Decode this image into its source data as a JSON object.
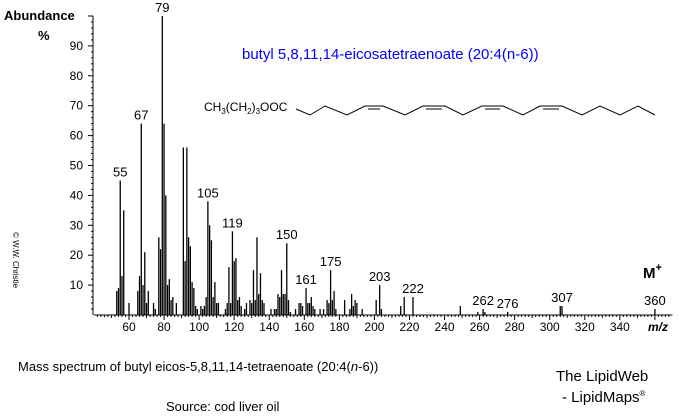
{
  "chart_data": {
    "type": "bar",
    "title": "butyl 5,8,11,14-eicosatetraenoate  (20:4(n-6))",
    "ylabel": "Abundance",
    "ylabel_unit": "%",
    "xlabel": "m/z",
    "xlim": [
      40,
      370
    ],
    "ylim": [
      0,
      100
    ],
    "x_ticks": [
      60,
      80,
      100,
      120,
      140,
      160,
      180,
      200,
      220,
      240,
      260,
      280,
      300,
      320,
      340
    ],
    "y_ticks": [
      10,
      20,
      30,
      40,
      50,
      60,
      70,
      80,
      90
    ],
    "bar_color": "#000000",
    "title_color": "#0000ff",
    "molecular_ion_label": "M",
    "molecular_ion_sup": "+",
    "peak_labels": [
      55,
      67,
      79,
      105,
      119,
      150,
      161,
      175,
      203,
      222,
      262,
      276,
      307,
      360
    ],
    "peaks": [
      [
        53,
        8
      ],
      [
        54,
        9
      ],
      [
        55,
        45
      ],
      [
        56,
        13
      ],
      [
        57,
        35
      ],
      [
        60,
        4
      ],
      [
        65,
        8
      ],
      [
        66,
        13
      ],
      [
        67,
        64
      ],
      [
        68,
        10
      ],
      [
        69,
        21
      ],
      [
        70,
        4
      ],
      [
        71,
        8
      ],
      [
        74,
        4
      ],
      [
        75,
        2
      ],
      [
        77,
        26
      ],
      [
        78,
        22
      ],
      [
        79,
        100
      ],
      [
        80,
        64
      ],
      [
        81,
        40
      ],
      [
        82,
        10
      ],
      [
        83,
        12
      ],
      [
        84,
        5
      ],
      [
        85,
        6
      ],
      [
        87,
        4
      ],
      [
        91,
        56
      ],
      [
        92,
        18
      ],
      [
        93,
        56
      ],
      [
        94,
        26
      ],
      [
        95,
        23
      ],
      [
        96,
        11
      ],
      [
        97,
        9
      ],
      [
        98,
        3
      ],
      [
        99,
        2
      ],
      [
        101,
        3
      ],
      [
        102,
        2
      ],
      [
        103,
        3
      ],
      [
        104,
        6
      ],
      [
        105,
        38
      ],
      [
        106,
        30
      ],
      [
        107,
        25
      ],
      [
        108,
        6
      ],
      [
        109,
        11
      ],
      [
        110,
        4
      ],
      [
        111,
        4
      ],
      [
        115,
        2
      ],
      [
        116,
        4
      ],
      [
        117,
        16
      ],
      [
        118,
        4
      ],
      [
        119,
        28
      ],
      [
        120,
        18
      ],
      [
        121,
        19
      ],
      [
        122,
        5
      ],
      [
        123,
        6
      ],
      [
        124,
        3
      ],
      [
        126,
        2
      ],
      [
        127,
        4
      ],
      [
        129,
        5
      ],
      [
        130,
        4
      ],
      [
        131,
        15
      ],
      [
        132,
        5
      ],
      [
        133,
        26
      ],
      [
        134,
        7
      ],
      [
        135,
        14
      ],
      [
        136,
        5
      ],
      [
        137,
        4
      ],
      [
        141,
        2
      ],
      [
        143,
        2
      ],
      [
        144,
        2
      ],
      [
        145,
        7
      ],
      [
        146,
        6
      ],
      [
        147,
        15
      ],
      [
        148,
        7
      ],
      [
        149,
        7
      ],
      [
        150,
        24
      ],
      [
        151,
        5
      ],
      [
        152,
        1
      ],
      [
        155,
        2
      ],
      [
        157,
        4
      ],
      [
        158,
        4
      ],
      [
        159,
        3
      ],
      [
        161,
        9
      ],
      [
        162,
        4
      ],
      [
        163,
        4
      ],
      [
        164,
        6
      ],
      [
        165,
        3
      ],
      [
        166,
        2
      ],
      [
        169,
        2
      ],
      [
        171,
        2
      ],
      [
        173,
        5
      ],
      [
        174,
        4
      ],
      [
        175,
        15
      ],
      [
        176,
        5
      ],
      [
        177,
        8
      ],
      [
        178,
        2
      ],
      [
        183,
        5
      ],
      [
        186,
        2
      ],
      [
        187,
        7
      ],
      [
        188,
        3
      ],
      [
        189,
        5
      ],
      [
        190,
        4
      ],
      [
        193,
        2
      ],
      [
        201,
        5
      ],
      [
        203,
        10
      ],
      [
        204,
        2
      ],
      [
        215,
        3
      ],
      [
        217,
        6
      ],
      [
        222,
        6
      ],
      [
        249,
        3
      ],
      [
        259,
        1
      ],
      [
        262,
        2
      ],
      [
        263,
        1
      ],
      [
        276,
        1
      ],
      [
        306,
        3
      ],
      [
        307,
        3
      ],
      [
        360,
        2
      ]
    ]
  },
  "structure": {
    "formula_prefix": "CH",
    "sub1": "3",
    "mid": "(CH",
    "sub2": "2",
    "close": ")",
    "sub3": "3",
    "suffix": "OOC"
  },
  "watermark": "© W.W. Christie",
  "caption": {
    "before": "Mass spectrum of butyl eicos-5,8,11,14-tetraenoate  (20:4(",
    "italic": "n",
    "after": "-6))"
  },
  "source": "Source: cod liver oil",
  "brand": {
    "line1": "The LipidWeb",
    "line2": "- LipidMaps",
    "mark": "®"
  }
}
